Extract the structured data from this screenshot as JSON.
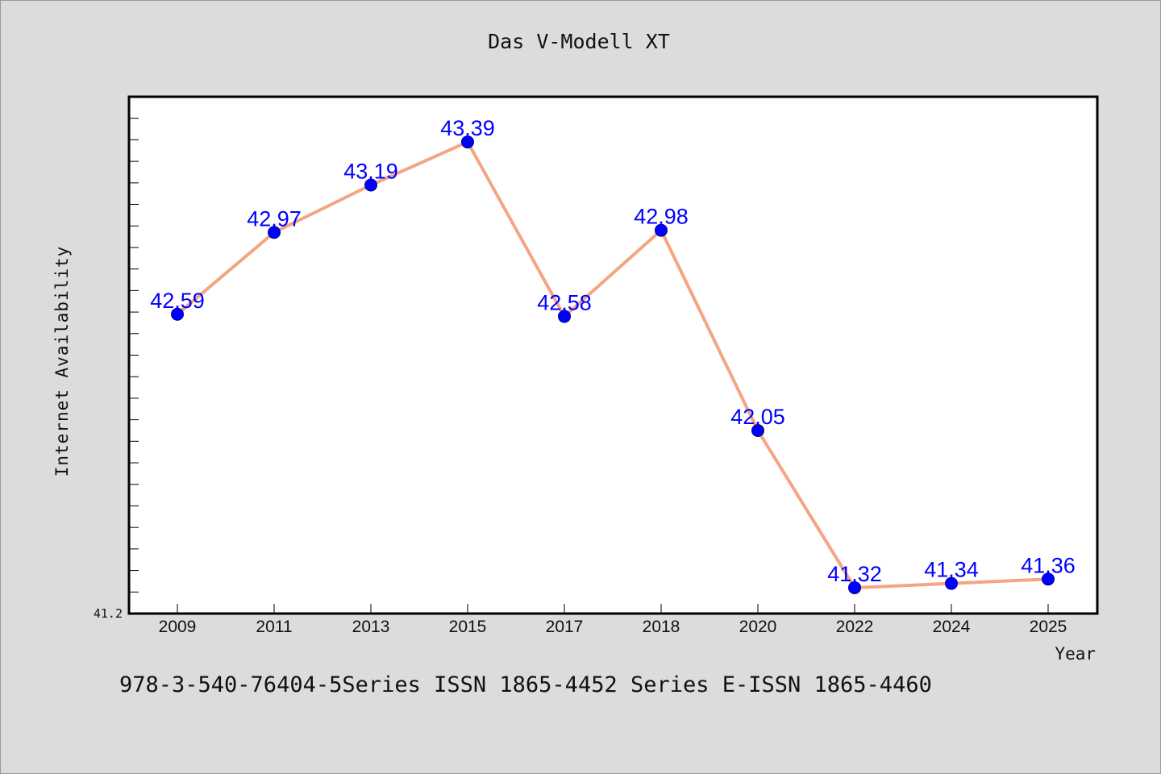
{
  "chart_data": {
    "type": "line",
    "title": "Das V-Modell XT",
    "xlabel": "Year",
    "ylabel": "Internet Availability",
    "categories": [
      "2009",
      "2011",
      "2013",
      "2015",
      "2017",
      "2018",
      "2020",
      "2022",
      "2024",
      "2025"
    ],
    "series": [
      {
        "values": [
          42.59,
          42.97,
          43.19,
          43.39,
          42.58,
          42.98,
          42.05,
          41.32,
          41.34,
          41.36
        ],
        "labels": [
          "42.59",
          "42.97",
          "43.19",
          "43.39",
          "42.58",
          "42.98",
          "42.05",
          "41.32",
          "41.34",
          "41.36"
        ],
        "line_color": "#f4a582",
        "marker_color": "#0000ff",
        "label_color": "#0000ff"
      }
    ],
    "ylim": [
      41.2,
      43.6
    ],
    "y_tick_labels": [
      "41.2"
    ],
    "grid": false,
    "legend": "none"
  },
  "footer": {
    "text": "978-3-540-76404-5Series ISSN 1865-4452 Series E-ISSN 1865-4460"
  }
}
